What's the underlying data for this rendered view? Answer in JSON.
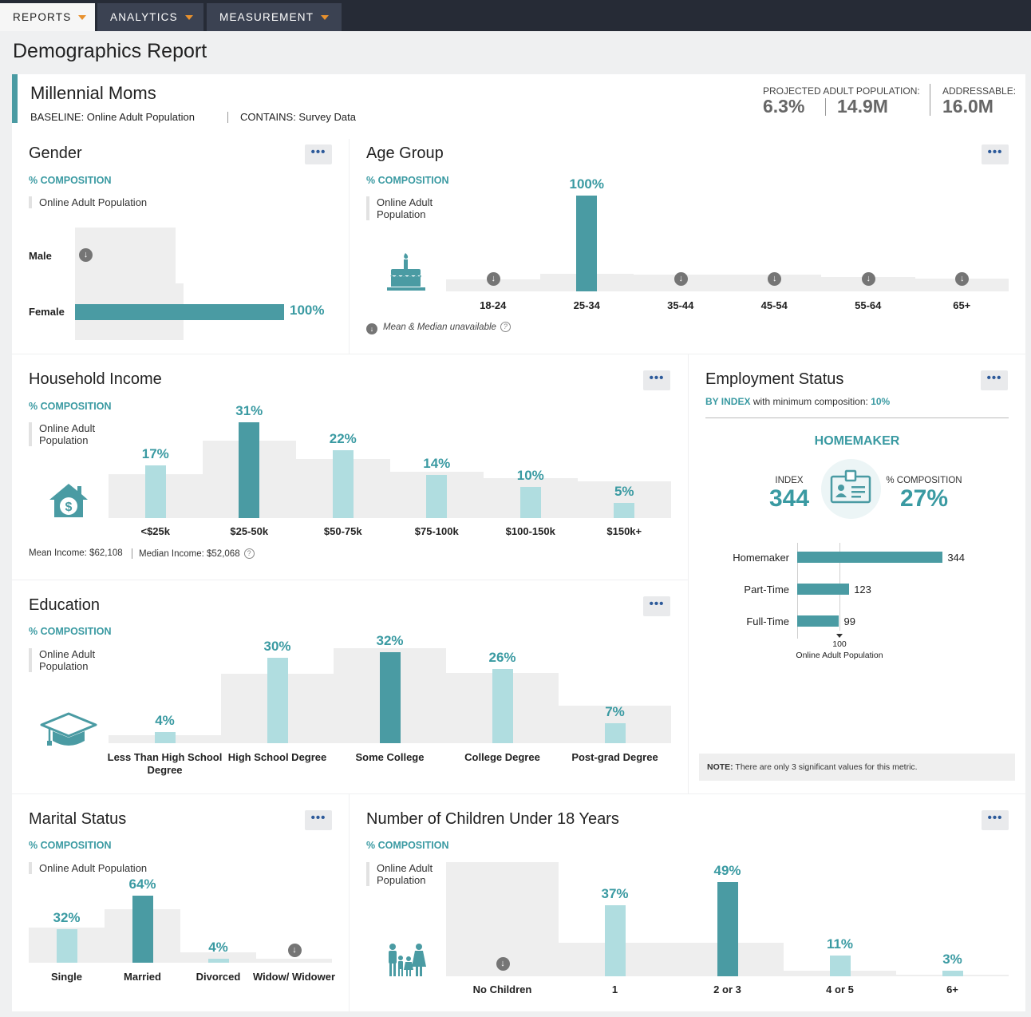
{
  "nav": {
    "tabs": [
      {
        "label": "REPORTS"
      },
      {
        "label": "ANALYTICS"
      },
      {
        "label": "MEASUREMENT"
      }
    ]
  },
  "page": {
    "title": "Demographics Report"
  },
  "header": {
    "segment_name": "Millennial Moms",
    "baseline": "BASELINE: Online Adult Population",
    "contains": "CONTAINS: Survey Data",
    "projected_label": "PROJECTED ADULT POPULATION:",
    "projected_pct": "6.3%",
    "projected_count": "14.9M",
    "addressable_label": "ADDRESSABLE:",
    "addressable_value": "16.0M"
  },
  "common": {
    "composition_label": "% COMPOSITION",
    "baseline_legend": "Online Adult Population",
    "menu_dots": "•••",
    "down_glyph": "↓"
  },
  "gender": {
    "title": "Gender",
    "rows": [
      {
        "label": "Male",
        "value": null,
        "display": ""
      },
      {
        "label": "Female",
        "value": 100,
        "display": "100%"
      }
    ]
  },
  "age": {
    "title": "Age Group",
    "categories": [
      "18-24",
      "25-34",
      "35-44",
      "45-54",
      "55-64",
      "65+"
    ],
    "values": [
      null,
      100,
      null,
      null,
      null,
      null
    ],
    "value_labels": [
      "",
      "100%",
      "",
      "",
      "",
      ""
    ],
    "note": "Mean & Median unavailable"
  },
  "income": {
    "title": "Household Income",
    "categories": [
      "<$25k",
      "$25-50k",
      "$50-75k",
      "$75-100k",
      "$100-150k",
      "$150k+"
    ],
    "values": [
      17,
      31,
      22,
      14,
      10,
      5
    ],
    "value_labels": [
      "17%",
      "31%",
      "22%",
      "14%",
      "10%",
      "5%"
    ],
    "mean": "Mean Income: $62,108",
    "median": "Median Income: $52,068"
  },
  "education": {
    "title": "Education",
    "categories": [
      "Less Than High School Degree",
      "High School Degree",
      "Some College",
      "College Degree",
      "Post-grad Degree"
    ],
    "values": [
      4,
      30,
      32,
      26,
      7
    ],
    "value_labels": [
      "4%",
      "30%",
      "32%",
      "26%",
      "7%"
    ]
  },
  "employment": {
    "title": "Employment Status",
    "by_index": "BY INDEX",
    "min_comp_text": "with minimum composition:",
    "min_comp_value": "10%",
    "top_label": "HOMEMAKER",
    "index_label": "INDEX",
    "index_value": "344",
    "comp_label": "% COMPOSITION",
    "comp_value": "27%",
    "rows": [
      {
        "label": "Homemaker",
        "value": 344,
        "display": "344"
      },
      {
        "label": "Part-Time",
        "value": 123,
        "display": "123"
      },
      {
        "label": "Full-Time",
        "value": 99,
        "display": "99"
      }
    ],
    "baseline_value": "100",
    "baseline_label": "Online Adult Population",
    "note_bold": "NOTE:",
    "note_text": "There are only 3 significant values for this metric."
  },
  "marital": {
    "title": "Marital Status",
    "categories": [
      "Single",
      "Married",
      "Divorced",
      "Widow/ Widower"
    ],
    "values": [
      32,
      64,
      4,
      null
    ],
    "value_labels": [
      "32%",
      "64%",
      "4%",
      ""
    ]
  },
  "children": {
    "title": "Number of Children Under 18 Years",
    "categories": [
      "No Children",
      "1",
      "2 or 3",
      "4 or 5",
      "6+"
    ],
    "values": [
      null,
      37,
      49,
      11,
      3
    ],
    "value_labels": [
      "",
      "37%",
      "49%",
      "11%",
      "3%"
    ]
  },
  "colors": {
    "accent": "#4a9ba3",
    "light": "#b0dde0",
    "label": "#3a9aa2",
    "nav": "#262b36"
  }
}
